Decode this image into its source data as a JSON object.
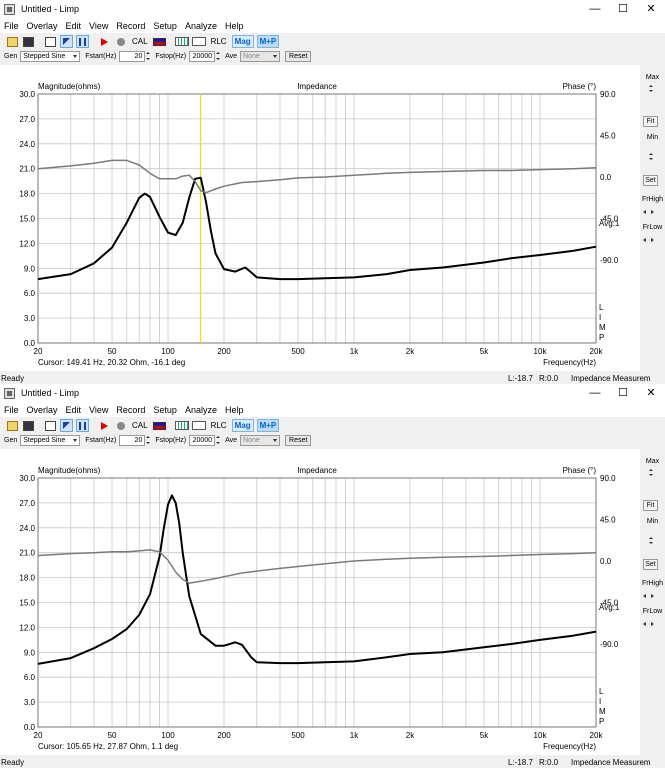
{
  "titlebar": {
    "title": "Untitled - Limp",
    "minimize": "—",
    "maximize": "☐",
    "close": "✕"
  },
  "menu": [
    "File",
    "Overlay",
    "Edit",
    "View",
    "Record",
    "Setup",
    "Analyze",
    "Help"
  ],
  "toolbar": {
    "cal": "CAL",
    "rlc": "RLC",
    "mag": "Mag",
    "mp": "M+P",
    "icons": [
      "open-icon",
      "save-icon",
      "new-icon",
      "marker-icon",
      "pause-icon",
      "play-icon",
      "record-icon"
    ]
  },
  "generator": {
    "gen_label": "Gen",
    "gen_type": "Stepped Sine",
    "fstart_label": "Fstart(Hz)",
    "fstart": "20",
    "fstop_label": "Fstop(Hz)",
    "fstop": "20000",
    "ave_label": "Ave",
    "ave": "None",
    "reset": "Reset"
  },
  "right_panel": {
    "max": "Max",
    "fit": "Fit",
    "min": "Min",
    "set": "Set",
    "frhigh": "FrHigh",
    "frlow": "FrLow"
  },
  "status": {
    "ready": "Ready",
    "l": "L:-18.7",
    "r": "R:0.0",
    "mode": "Impedance Measurem"
  },
  "colors": {
    "magnitude": "#000000",
    "phase": "#7a7a7a",
    "cursor": "#e6e600",
    "grid": "#c8c8c8"
  },
  "windows": [
    {
      "plot": {
        "ylabel": "Magnitude(ohms)",
        "title": "Impedance",
        "phase_label": "Phase (°)",
        "xlabel": "Frequency(Hz)",
        "avg": "Avg:1",
        "cursor": "Cursor: 149.41 Hz, 20.32 Ohm, -16.1 deg",
        "side_letters": [
          "L",
          "I",
          "M",
          "P"
        ]
      },
      "chart_data": {
        "type": "line",
        "x_scale": "log",
        "xlim": [
          20,
          20000
        ],
        "ylim": [
          0,
          30
        ],
        "y2lim": [
          -180,
          90
        ],
        "x_ticks": [
          "20",
          "50",
          "100",
          "200",
          "500",
          "1k",
          "2k",
          "5k",
          "10k",
          "20k"
        ],
        "y_ticks": [
          "0.0",
          "3.0",
          "6.0",
          "9.0",
          "12.0",
          "15.0",
          "18.0",
          "21.0",
          "24.0",
          "27.0",
          "30.0"
        ],
        "y2_ticks": [
          "90.0",
          "45.0",
          "0.0",
          "-45.0",
          "-90.0"
        ],
        "cursor_x": 149.41,
        "series": [
          {
            "name": "Magnitude(ohms)",
            "axis": "left",
            "x": [
              20,
              30,
              40,
              50,
              60,
              70,
              75,
              80,
              90,
              100,
              110,
              120,
              130,
              140,
              150,
              160,
              170,
              180,
              200,
              230,
              260,
              280,
              300,
              400,
              500,
              700,
              1000,
              1500,
              2000,
              3000,
              5000,
              7000,
              10000,
              15000,
              20000
            ],
            "y": [
              7.7,
              8.3,
              9.6,
              11.5,
              14.5,
              17.5,
              18.0,
              17.6,
              15.2,
              13.3,
              13.0,
              14.5,
              17.5,
              19.8,
              19.9,
              17.0,
              13.5,
              10.8,
              8.9,
              8.6,
              9.1,
              8.5,
              7.9,
              7.7,
              7.7,
              7.8,
              7.9,
              8.3,
              8.8,
              9.1,
              9.7,
              10.2,
              10.6,
              11.1,
              11.6
            ]
          },
          {
            "name": "Phase (°)",
            "axis": "right",
            "x": [
              20,
              30,
              40,
              50,
              60,
              70,
              80,
              90,
              100,
              110,
              120,
              130,
              140,
              150,
              160,
              180,
              200,
              250,
              300,
              400,
              500,
              700,
              1000,
              1500,
              2000,
              3000,
              5000,
              7000,
              10000,
              15000,
              20000
            ],
            "y": [
              9,
              12,
              15,
              18,
              18,
              13,
              4,
              -2,
              -2,
              -2,
              1,
              2,
              -5,
              -15,
              -17,
              -13,
              -10,
              -6,
              -5,
              -3,
              -1,
              0,
              2,
              4,
              5,
              6,
              7,
              7,
              8,
              9,
              10
            ]
          }
        ]
      }
    },
    {
      "plot": {
        "ylabel": "Magnitude(ohms)",
        "title": "Impedance",
        "phase_label": "Phase (°)",
        "xlabel": "Frequency(Hz)",
        "avg": "Avg:1",
        "cursor": "Cursor: 105.65 Hz, 27.87 Ohm, 1.1 deg",
        "side_letters": [
          "L",
          "I",
          "M",
          "P"
        ]
      },
      "chart_data": {
        "type": "line",
        "x_scale": "log",
        "xlim": [
          20,
          20000
        ],
        "ylim": [
          0,
          30
        ],
        "y2lim": [
          -180,
          90
        ],
        "x_ticks": [
          "20",
          "50",
          "100",
          "200",
          "500",
          "1k",
          "2k",
          "5k",
          "10k",
          "20k"
        ],
        "y_ticks": [
          "0.0",
          "3.0",
          "6.0",
          "9.0",
          "12.0",
          "15.0",
          "18.0",
          "21.0",
          "24.0",
          "27.0",
          "30.0"
        ],
        "y2_ticks": [
          "90.0",
          "45.0",
          "0.0",
          "-45.0",
          "-90.0"
        ],
        "cursor_x": null,
        "series": [
          {
            "name": "Magnitude(ohms)",
            "axis": "left",
            "x": [
              20,
              30,
              40,
              50,
              60,
              70,
              80,
              90,
              95,
              100,
              105,
              110,
              115,
              120,
              130,
              150,
              180,
              200,
              230,
              250,
              280,
              300,
              400,
              500,
              700,
              1000,
              1500,
              2000,
              3000,
              5000,
              7000,
              10000,
              15000,
              20000
            ],
            "y": [
              7.6,
              8.3,
              9.5,
              10.6,
              11.8,
              13.5,
              16.0,
              20.5,
              24.0,
              26.8,
              27.9,
              27.0,
              24.5,
              21.0,
              15.8,
              11.2,
              9.8,
              9.8,
              10.2,
              9.9,
              8.4,
              7.8,
              7.7,
              7.7,
              7.8,
              7.9,
              8.4,
              8.8,
              9.0,
              9.6,
              10.0,
              10.5,
              11.0,
              11.5
            ]
          },
          {
            "name": "Phase (°)",
            "axis": "right",
            "x": [
              20,
              30,
              40,
              50,
              60,
              70,
              80,
              90,
              100,
              110,
              120,
              130,
              150,
              180,
              200,
              250,
              300,
              400,
              500,
              700,
              1000,
              1500,
              2000,
              3000,
              5000,
              7000,
              10000,
              15000,
              20000
            ],
            "y": [
              6,
              8,
              9,
              10,
              10,
              11,
              12,
              10,
              1,
              -12,
              -20,
              -24,
              -22,
              -19,
              -17,
              -13,
              -11,
              -8,
              -6,
              -3,
              0,
              2,
              3,
              4,
              5,
              6,
              7,
              8,
              9
            ]
          }
        ]
      }
    }
  ]
}
